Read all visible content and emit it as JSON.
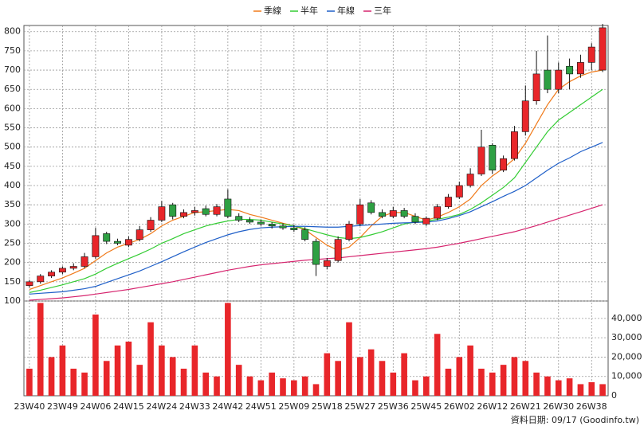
{
  "chart_data": [
    {
      "type": "candlestick",
      "legend": [],
      "categories": [
        "23W40",
        null,
        null,
        "23W49",
        null,
        null,
        "24W06",
        null,
        null,
        "24W15",
        null,
        null,
        "24W24",
        null,
        null,
        "24W33",
        null,
        null,
        "24W42",
        null,
        null,
        "24W51",
        null,
        null,
        "25W09",
        null,
        null,
        "25W18",
        null,
        null,
        "25W27",
        null,
        null,
        "25W36",
        null,
        null,
        "25W45",
        null,
        null,
        "26W02",
        null,
        null,
        "26W12",
        null,
        null,
        "26W21",
        null,
        null,
        "26W30",
        null,
        null,
        "26W38",
        null
      ],
      "open": [
        140,
        150,
        165,
        175,
        185,
        190,
        215,
        275,
        255,
        245,
        260,
        285,
        310,
        350,
        320,
        330,
        340,
        325,
        365,
        320,
        310,
        305,
        300,
        295,
        290,
        285,
        255,
        190,
        205,
        260,
        300,
        355,
        330,
        320,
        335,
        320,
        300,
        315,
        345,
        370,
        400,
        430,
        505,
        440,
        470,
        540,
        620,
        700,
        650,
        710,
        690,
        720,
        700
      ],
      "high": [
        155,
        170,
        180,
        190,
        198,
        225,
        290,
        280,
        262,
        268,
        295,
        318,
        360,
        355,
        338,
        345,
        348,
        352,
        390,
        328,
        318,
        312,
        305,
        302,
        298,
        292,
        262,
        212,
        268,
        308,
        365,
        362,
        338,
        345,
        342,
        328,
        320,
        352,
        378,
        410,
        445,
        545,
        510,
        478,
        555,
        660,
        750,
        790,
        720,
        730,
        740,
        770,
        820
      ],
      "low": [
        135,
        145,
        160,
        170,
        180,
        185,
        210,
        248,
        245,
        240,
        255,
        280,
        305,
        312,
        315,
        322,
        320,
        320,
        315,
        305,
        300,
        295,
        288,
        285,
        280,
        255,
        165,
        182,
        200,
        255,
        295,
        325,
        315,
        315,
        315,
        300,
        295,
        310,
        340,
        365,
        395,
        425,
        430,
        435,
        465,
        530,
        610,
        640,
        640,
        650,
        680,
        700,
        695
      ],
      "close": [
        150,
        165,
        175,
        185,
        190,
        215,
        270,
        255,
        250,
        260,
        285,
        310,
        345,
        320,
        330,
        335,
        325,
        345,
        320,
        310,
        305,
        300,
        295,
        290,
        285,
        260,
        195,
        205,
        260,
        300,
        350,
        330,
        320,
        335,
        320,
        305,
        315,
        345,
        370,
        400,
        430,
        500,
        440,
        470,
        540,
        620,
        690,
        650,
        700,
        690,
        720,
        760,
        810
      ],
      "up_color": "#e8262a",
      "down_color": "#2ea043",
      "ylim": [
        100,
        816
      ],
      "yticks": [
        100,
        150,
        200,
        250,
        300,
        350,
        400,
        450,
        500,
        550,
        600,
        650,
        700,
        750,
        800
      ],
      "grid": true,
      "series": [
        {
          "name": "季線",
          "color": "#f07a1a",
          "values": [
            130,
            140,
            150,
            160,
            172,
            185,
            205,
            225,
            240,
            250,
            260,
            275,
            295,
            310,
            320,
            330,
            332,
            335,
            338,
            335,
            325,
            318,
            310,
            302,
            295,
            285,
            265,
            245,
            232,
            240,
            265,
            295,
            320,
            330,
            330,
            320,
            310,
            318,
            330,
            345,
            365,
            400,
            425,
            445,
            470,
            510,
            560,
            610,
            650,
            670,
            685,
            695,
            700
          ]
        },
        {
          "name": "半年",
          "color": "#33cc33",
          "values": [
            122,
            128,
            135,
            142,
            150,
            158,
            170,
            185,
            198,
            210,
            222,
            235,
            250,
            262,
            275,
            285,
            295,
            302,
            308,
            312,
            312,
            310,
            305,
            300,
            295,
            288,
            280,
            272,
            265,
            262,
            265,
            272,
            280,
            290,
            300,
            305,
            308,
            312,
            318,
            325,
            338,
            355,
            375,
            395,
            420,
            460,
            500,
            540,
            570,
            590,
            610,
            630,
            650
          ]
        },
        {
          "name": "年線",
          "color": "#1f5fc8",
          "values": [
            118,
            120,
            122,
            124,
            128,
            132,
            138,
            148,
            158,
            168,
            178,
            190,
            202,
            215,
            228,
            240,
            252,
            262,
            272,
            280,
            286,
            290,
            292,
            293,
            294,
            294,
            293,
            292,
            292,
            294,
            296,
            298,
            300,
            302,
            303,
            304,
            305,
            308,
            314,
            322,
            332,
            345,
            358,
            372,
            385,
            400,
            420,
            440,
            458,
            472,
            488,
            500,
            512
          ]
        },
        {
          "name": "三年",
          "color": "#d6246e",
          "values": [
            102,
            104,
            106,
            108,
            111,
            114,
            118,
            122,
            126,
            130,
            135,
            140,
            145,
            150,
            156,
            162,
            168,
            174,
            180,
            185,
            190,
            194,
            197,
            200,
            203,
            206,
            208,
            210,
            212,
            215,
            218,
            221,
            224,
            227,
            230,
            233,
            236,
            240,
            245,
            250,
            256,
            262,
            268,
            274,
            280,
            288,
            296,
            305,
            314,
            323,
            332,
            341,
            350
          ]
        }
      ]
    },
    {
      "type": "bar",
      "color": "#e8262a",
      "values": [
        14000,
        48000,
        20000,
        26000,
        14000,
        12000,
        42000,
        18000,
        26000,
        28000,
        16000,
        38000,
        26000,
        20000,
        14000,
        26000,
        12000,
        10000,
        48000,
        16000,
        10000,
        8000,
        12000,
        9000,
        8000,
        10000,
        6000,
        22000,
        18000,
        38000,
        20000,
        24000,
        18000,
        12000,
        22000,
        8000,
        10000,
        32000,
        14000,
        20000,
        26000,
        14000,
        12000,
        16000,
        20000,
        18000,
        12000,
        10000,
        8000,
        9000,
        6000,
        7000,
        6000
      ],
      "ylim": [
        0,
        49000
      ],
      "yticks": [
        0,
        {
          "value": 10000,
          "label": "10,000"
        },
        {
          "value": 20000,
          "label": "20,000"
        },
        {
          "value": 30000,
          "label": "30,000"
        },
        {
          "value": 40000,
          "label": "40,000"
        }
      ],
      "grid": true
    }
  ],
  "footnote": "資料日期: 09/17  (Goodinfo.tw)"
}
